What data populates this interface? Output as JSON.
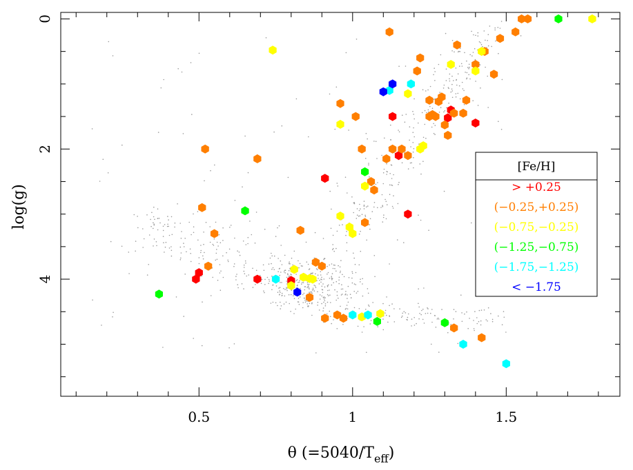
{
  "chart_data": {
    "type": "scatter",
    "xlabel": "θ (=5040/T",
    "xlabel_sub": "eff",
    "xlabel_end": ")",
    "ylabel": "log(g)",
    "xlim": [
      0.05,
      1.87
    ],
    "ylim": [
      5.8,
      -0.1
    ],
    "y_inverted": true,
    "grid": false,
    "x_ticks": [
      {
        "value": 0.5,
        "label": "0.5"
      },
      {
        "value": 1.0,
        "label": "1"
      },
      {
        "value": 1.5,
        "label": "1.5"
      }
    ],
    "y_ticks": [
      {
        "value": 0,
        "label": "0"
      },
      {
        "value": 2,
        "label": "2"
      },
      {
        "value": 4,
        "label": "4"
      }
    ],
    "legend": {
      "title": "[Fe/H]",
      "placement": "right",
      "entries": [
        {
          "label": "> +0.25",
          "color": "#ff0000"
        },
        {
          "label": "(−0.25,+0.25)",
          "color": "#ff7f00"
        },
        {
          "label": "(−0.75,−0.25)",
          "color": "#ffff00"
        },
        {
          "label": "(−1.25,−0.75)",
          "color": "#00ff00"
        },
        {
          "label": "(−1.75,−1.25)",
          "color": "#00ffff"
        },
        {
          "label": "< −1.75",
          "color": "#0000ff"
        }
      ]
    },
    "background_cloud_color": "#999999",
    "series": [
      {
        "label": "> +0.25",
        "color": "#ff0000",
        "points": [
          [
            0.49,
            4.0
          ],
          [
            0.5,
            3.9
          ],
          [
            0.69,
            4.0
          ],
          [
            0.8,
            4.02
          ],
          [
            0.91,
            2.45
          ],
          [
            1.13,
            1.5
          ],
          [
            1.15,
            2.1
          ],
          [
            1.18,
            3.0
          ],
          [
            1.31,
            1.52
          ],
          [
            1.32,
            1.4
          ],
          [
            1.4,
            1.6
          ]
        ]
      },
      {
        "label": "(−0.25,+0.25)",
        "color": "#ff7f00",
        "points": [
          [
            0.51,
            2.9
          ],
          [
            0.52,
            2.0
          ],
          [
            0.53,
            3.8
          ],
          [
            0.55,
            3.3
          ],
          [
            0.69,
            2.15
          ],
          [
            0.83,
            3.25
          ],
          [
            0.86,
            4.28
          ],
          [
            0.88,
            3.74
          ],
          [
            0.9,
            3.8
          ],
          [
            0.91,
            4.6
          ],
          [
            0.95,
            4.55
          ],
          [
            0.97,
            4.6
          ],
          [
            0.96,
            1.3
          ],
          [
            1.01,
            1.5
          ],
          [
            1.03,
            2.0
          ],
          [
            1.04,
            3.13
          ],
          [
            1.06,
            2.5
          ],
          [
            1.07,
            2.63
          ],
          [
            1.11,
            2.15
          ],
          [
            1.12,
            0.2
          ],
          [
            1.13,
            2.0
          ],
          [
            1.16,
            2.0
          ],
          [
            1.18,
            2.1
          ],
          [
            1.21,
            0.8
          ],
          [
            1.22,
            0.6
          ],
          [
            1.25,
            1.25
          ],
          [
            1.25,
            1.5
          ],
          [
            1.26,
            1.47
          ],
          [
            1.27,
            1.5
          ],
          [
            1.28,
            1.27
          ],
          [
            1.29,
            1.2
          ],
          [
            1.3,
            1.63
          ],
          [
            1.31,
            1.79
          ],
          [
            1.33,
            1.45
          ],
          [
            1.34,
            0.4
          ],
          [
            1.33,
            4.75
          ],
          [
            1.36,
            1.45
          ],
          [
            1.37,
            1.25
          ],
          [
            1.4,
            0.7
          ],
          [
            1.42,
            4.9
          ],
          [
            1.43,
            0.5
          ],
          [
            1.46,
            0.85
          ],
          [
            1.48,
            0.3
          ],
          [
            1.53,
            0.2
          ],
          [
            1.55,
            0.0
          ],
          [
            1.57,
            0.0
          ]
        ]
      },
      {
        "label": "(−0.75,−0.25)",
        "color": "#ffff00",
        "points": [
          [
            0.74,
            0.48
          ],
          [
            0.8,
            4.1
          ],
          [
            0.81,
            3.85
          ],
          [
            0.84,
            3.97
          ],
          [
            0.86,
            3.99
          ],
          [
            0.87,
            4.0
          ],
          [
            0.96,
            1.62
          ],
          [
            0.96,
            3.03
          ],
          [
            0.99,
            3.2
          ],
          [
            1.0,
            3.3
          ],
          [
            1.03,
            4.58
          ],
          [
            1.04,
            2.57
          ],
          [
            1.09,
            4.53
          ],
          [
            1.18,
            1.15
          ],
          [
            1.22,
            2.0
          ],
          [
            1.23,
            1.95
          ],
          [
            1.32,
            0.7
          ],
          [
            1.4,
            0.8
          ],
          [
            1.42,
            0.5
          ],
          [
            1.78,
            0.0
          ]
        ]
      },
      {
        "label": "(−1.25,−0.75)",
        "color": "#00ff00",
        "points": [
          [
            0.37,
            4.23
          ],
          [
            0.65,
            2.95
          ],
          [
            1.04,
            2.35
          ],
          [
            1.08,
            4.65
          ],
          [
            1.3,
            4.67
          ],
          [
            1.67,
            0.0
          ]
        ]
      },
      {
        "label": "(−1.75,−1.25)",
        "color": "#00ffff",
        "points": [
          [
            0.75,
            4.0
          ],
          [
            1.0,
            4.55
          ],
          [
            1.05,
            4.55
          ],
          [
            1.12,
            1.1
          ],
          [
            1.19,
            1.0
          ],
          [
            1.36,
            5.0
          ],
          [
            1.5,
            5.3
          ]
        ]
      },
      {
        "label": "< −1.75",
        "color": "#0000ff",
        "points": [
          [
            0.82,
            4.2
          ],
          [
            1.1,
            1.12
          ],
          [
            1.13,
            1.0
          ]
        ]
      }
    ]
  }
}
